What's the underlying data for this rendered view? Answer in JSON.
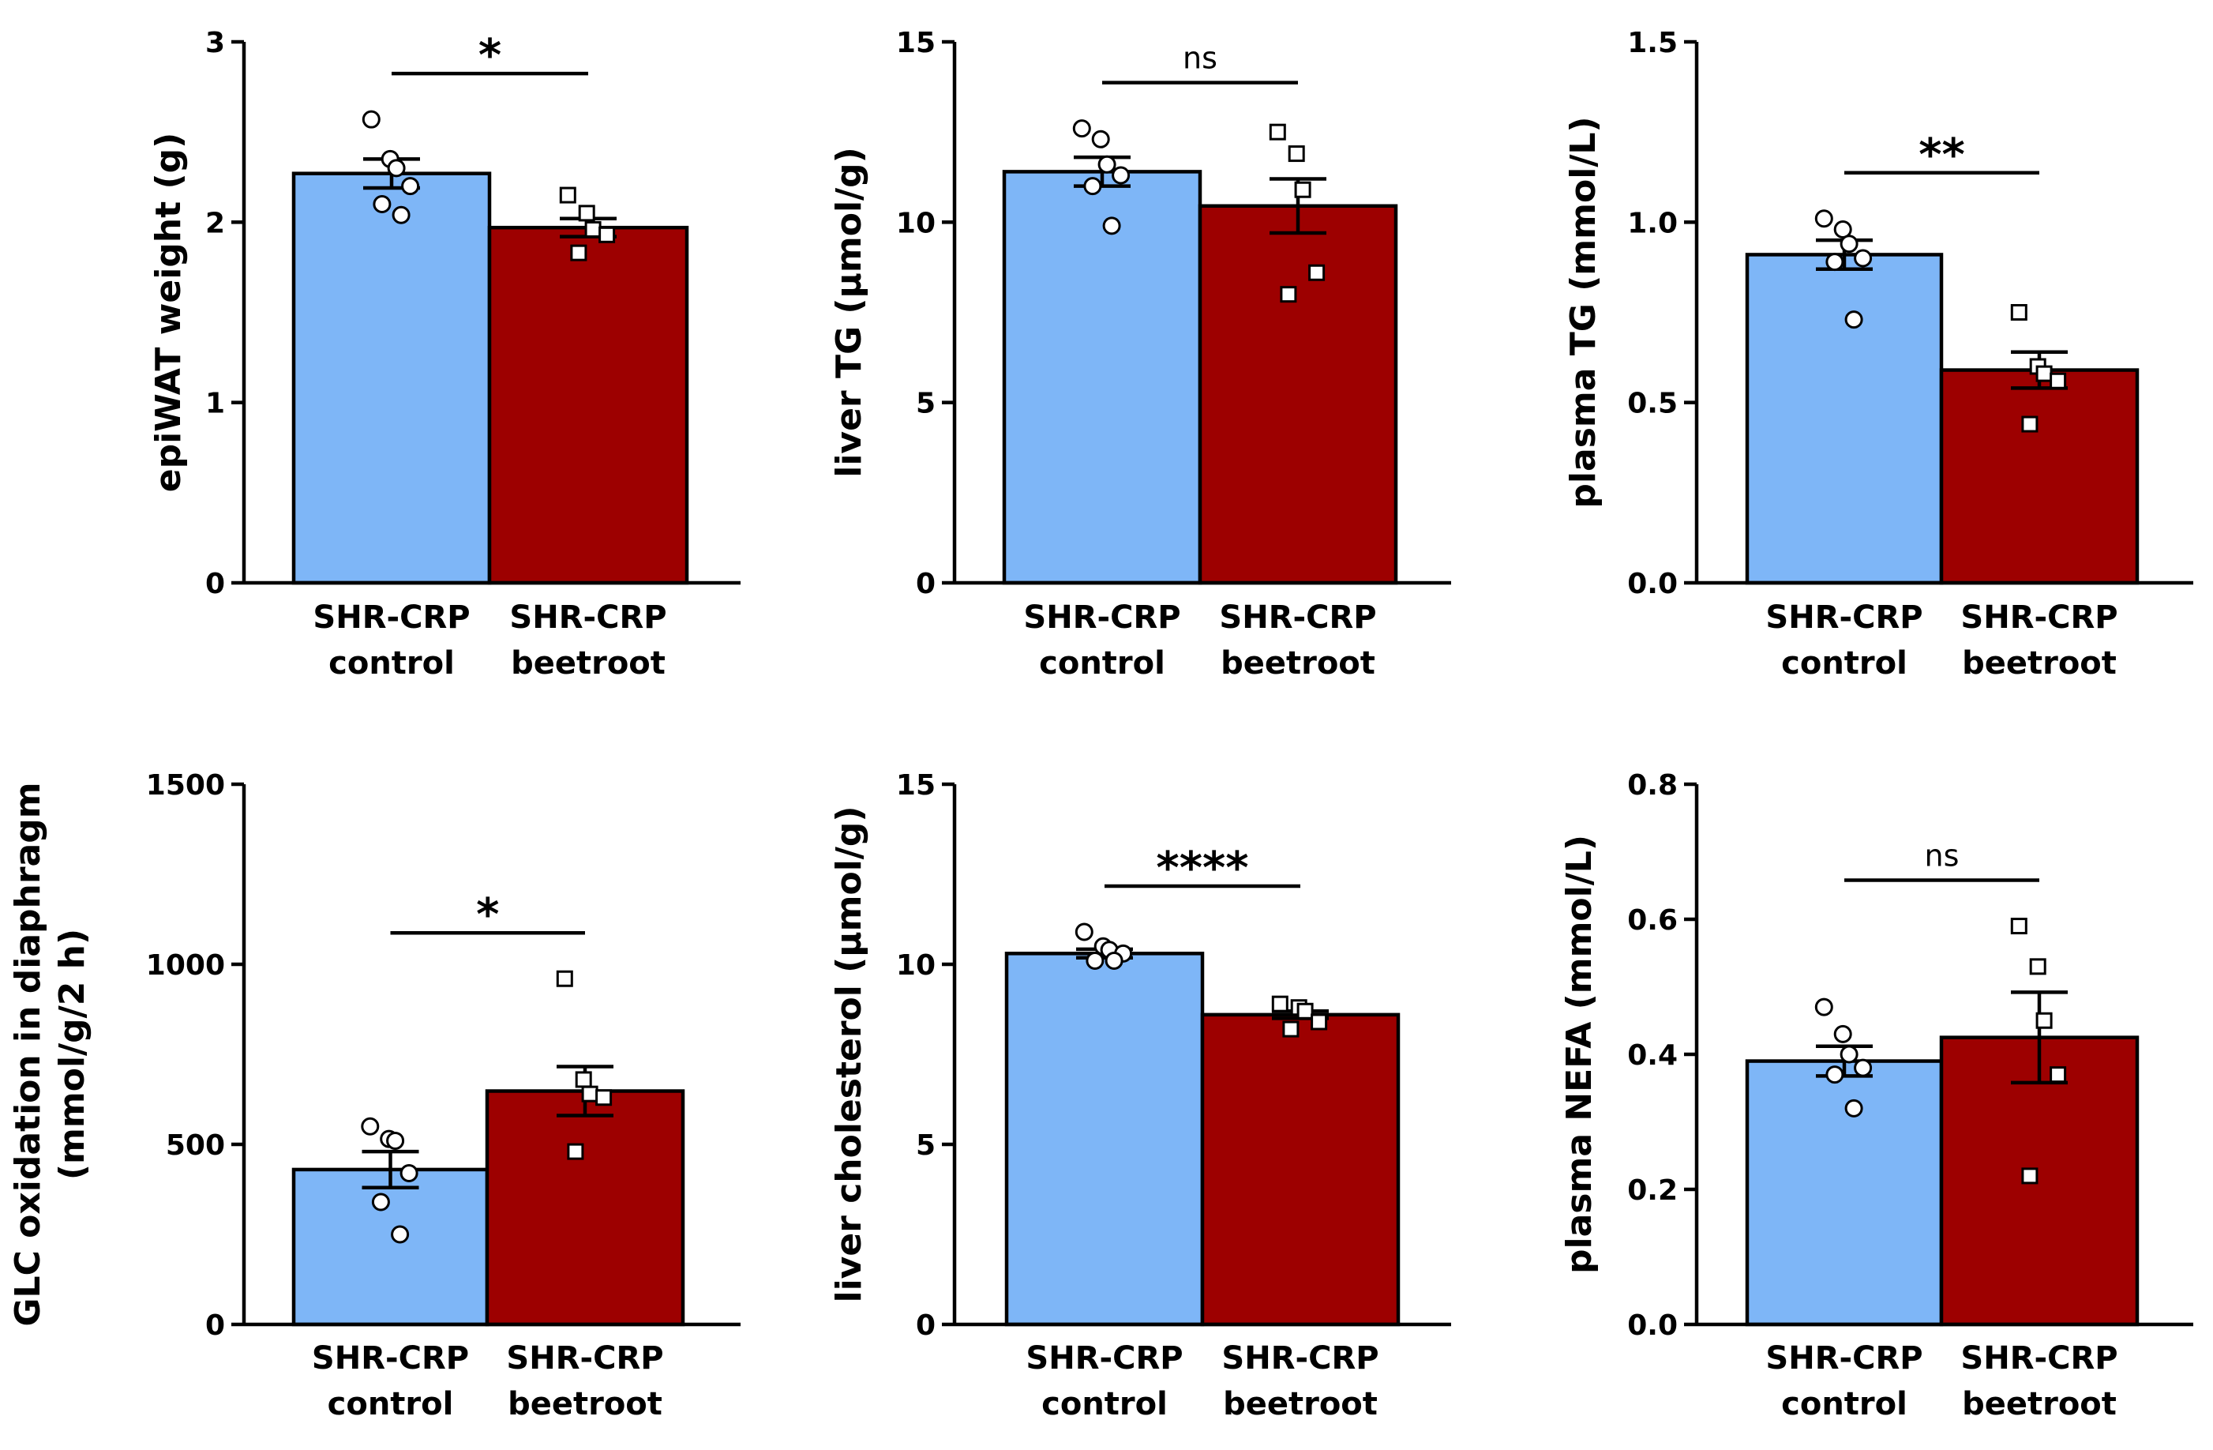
{
  "groups": [
    "SHR-CRP control",
    "SHR-CRP beetroot"
  ],
  "colors": {
    "control": "#7eb6f7",
    "beetroot": "#9d0000",
    "axis": "#000000"
  },
  "chart_data": [
    {
      "type": "bar",
      "ylabel": [
        "epiWAT weight (g)"
      ],
      "categories": [
        [
          "SHR-CRP",
          "control"
        ],
        [
          "SHR-CRP",
          "beetroot"
        ]
      ],
      "ylim": [
        0,
        3
      ],
      "yticks": [
        "0",
        "1",
        "2",
        "3"
      ],
      "tickvals": [
        0,
        1,
        2,
        3
      ],
      "values": [
        2.27,
        1.97
      ],
      "sem": [
        0.08,
        0.05
      ],
      "points": [
        [
          2.57,
          2.35,
          2.3,
          2.2,
          2.1,
          2.04
        ],
        [
          2.15,
          2.05,
          1.96,
          1.93,
          1.83
        ]
      ],
      "significance": "*"
    },
    {
      "type": "bar",
      "ylabel": [
        "liver TG (µmol/g)"
      ],
      "categories": [
        [
          "SHR-CRP",
          "control"
        ],
        [
          "SHR-CRP",
          "beetroot"
        ]
      ],
      "ylim": [
        0,
        15
      ],
      "yticks": [
        "0",
        "5",
        "10",
        "15"
      ],
      "tickvals": [
        0,
        5,
        10,
        15
      ],
      "values": [
        11.4,
        10.45
      ],
      "sem": [
        0.4,
        0.75
      ],
      "points": [
        [
          12.6,
          12.3,
          11.6,
          11.3,
          11.0,
          9.9
        ],
        [
          12.5,
          11.9,
          10.9,
          8.6,
          8.0
        ]
      ],
      "significance": "ns"
    },
    {
      "type": "bar",
      "ylabel": [
        "plasma TG (mmol/L)"
      ],
      "categories": [
        [
          "SHR-CRP",
          "control"
        ],
        [
          "SHR-CRP",
          "beetroot"
        ]
      ],
      "ylim": [
        0,
        1.5
      ],
      "yticks": [
        "0.0",
        "0.5",
        "1.0",
        "1.5"
      ],
      "tickvals": [
        0,
        0.5,
        1.0,
        1.5
      ],
      "values": [
        0.91,
        0.59
      ],
      "sem": [
        0.04,
        0.05
      ],
      "points": [
        [
          1.01,
          0.98,
          0.94,
          0.9,
          0.89,
          0.73
        ],
        [
          0.75,
          0.6,
          0.58,
          0.56,
          0.44
        ]
      ],
      "significance": "**"
    },
    {
      "type": "bar",
      "ylabel": [
        "GLC oxidation in diaphragm",
        "(mmol/g/2 h)"
      ],
      "categories": [
        [
          "SHR-CRP",
          "control"
        ],
        [
          "SHR-CRP",
          "beetroot"
        ]
      ],
      "ylim": [
        0,
        1500
      ],
      "yticks": [
        "0",
        "500",
        "1000",
        "1500"
      ],
      "tickvals": [
        0,
        500,
        1000,
        1500
      ],
      "values": [
        430,
        648
      ],
      "sem": [
        50,
        68
      ],
      "points": [
        [
          550,
          515,
          510,
          420,
          340,
          250
        ],
        [
          960,
          680,
          640,
          630,
          480
        ]
      ],
      "significance": "*"
    },
    {
      "type": "bar",
      "ylabel": [
        "liver cholesterol (µmol/g)"
      ],
      "categories": [
        [
          "SHR-CRP",
          "control"
        ],
        [
          "SHR-CRP",
          "beetroot"
        ]
      ],
      "ylim": [
        0,
        15
      ],
      "yticks": [
        "0",
        "5",
        "10",
        "15"
      ],
      "tickvals": [
        0,
        5,
        10,
        15
      ],
      "values": [
        10.3,
        8.6
      ],
      "sem": [
        0.12,
        0.1
      ],
      "points": [
        [
          10.9,
          10.5,
          10.4,
          10.3,
          10.1,
          10.1
        ],
        [
          8.9,
          8.8,
          8.7,
          8.4,
          8.2
        ]
      ],
      "significance": "****"
    },
    {
      "type": "bar",
      "ylabel": [
        "plasma NEFA (mmol/L)"
      ],
      "categories": [
        [
          "SHR-CRP",
          "control"
        ],
        [
          "SHR-CRP",
          "beetroot"
        ]
      ],
      "ylim": [
        0,
        0.8
      ],
      "yticks": [
        "0.0",
        "0.2",
        "0.4",
        "0.6",
        "0.8"
      ],
      "tickvals": [
        0,
        0.2,
        0.4,
        0.6,
        0.8
      ],
      "values": [
        0.39,
        0.425
      ],
      "sem": [
        0.022,
        0.067
      ],
      "points": [
        [
          0.47,
          0.43,
          0.4,
          0.38,
          0.37,
          0.32
        ],
        [
          0.59,
          0.53,
          0.45,
          0.37,
          0.22
        ]
      ],
      "significance": "ns"
    }
  ]
}
